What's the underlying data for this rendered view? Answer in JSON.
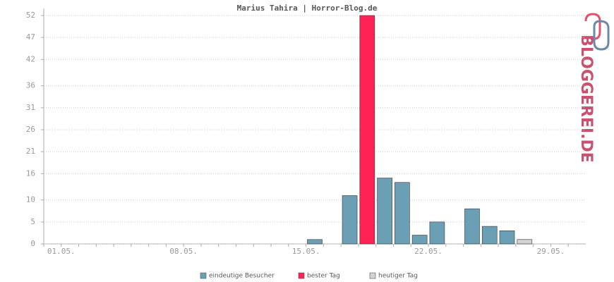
{
  "chart_data": {
    "type": "bar",
    "title": "Marius Tahira | Horror-Blog.de",
    "categories": [
      null,
      "01.05.",
      null,
      null,
      null,
      null,
      null,
      null,
      "08.05.",
      null,
      null,
      null,
      null,
      null,
      null,
      "15.05.",
      null,
      null,
      null,
      null,
      null,
      null,
      "22.05.",
      null,
      null,
      null,
      null,
      null,
      null,
      "29.05.",
      null
    ],
    "series": [
      {
        "name": "eindeutige Besucher",
        "color": "#6a9fb5",
        "values": [
          0,
          0,
          0,
          0,
          0,
          0,
          0,
          0,
          0,
          0,
          0,
          0,
          0,
          0,
          0,
          1,
          0,
          11,
          null,
          15,
          14,
          2,
          5,
          0,
          8,
          4,
          3,
          null,
          0,
          0,
          0
        ]
      },
      {
        "name": "bester Tag",
        "color": "#ff2255",
        "values": [
          null,
          null,
          null,
          null,
          null,
          null,
          null,
          null,
          null,
          null,
          null,
          null,
          null,
          null,
          null,
          null,
          null,
          null,
          52,
          null,
          null,
          null,
          null,
          null,
          null,
          null,
          null,
          null,
          null,
          null,
          null
        ]
      },
      {
        "name": "heutiger Tag",
        "color": "#d3d3d3",
        "values": [
          null,
          null,
          null,
          null,
          null,
          null,
          null,
          null,
          null,
          null,
          null,
          null,
          null,
          null,
          null,
          null,
          null,
          null,
          null,
          null,
          null,
          null,
          null,
          null,
          null,
          null,
          null,
          1,
          null,
          null,
          null
        ]
      }
    ],
    "ylim": [
      0,
      52
    ],
    "yticks": [
      0,
      5,
      10,
      16,
      21,
      26,
      31,
      36,
      42,
      47,
      52
    ],
    "grid": true
  },
  "logo_text": "BLOGGEREI.DE"
}
